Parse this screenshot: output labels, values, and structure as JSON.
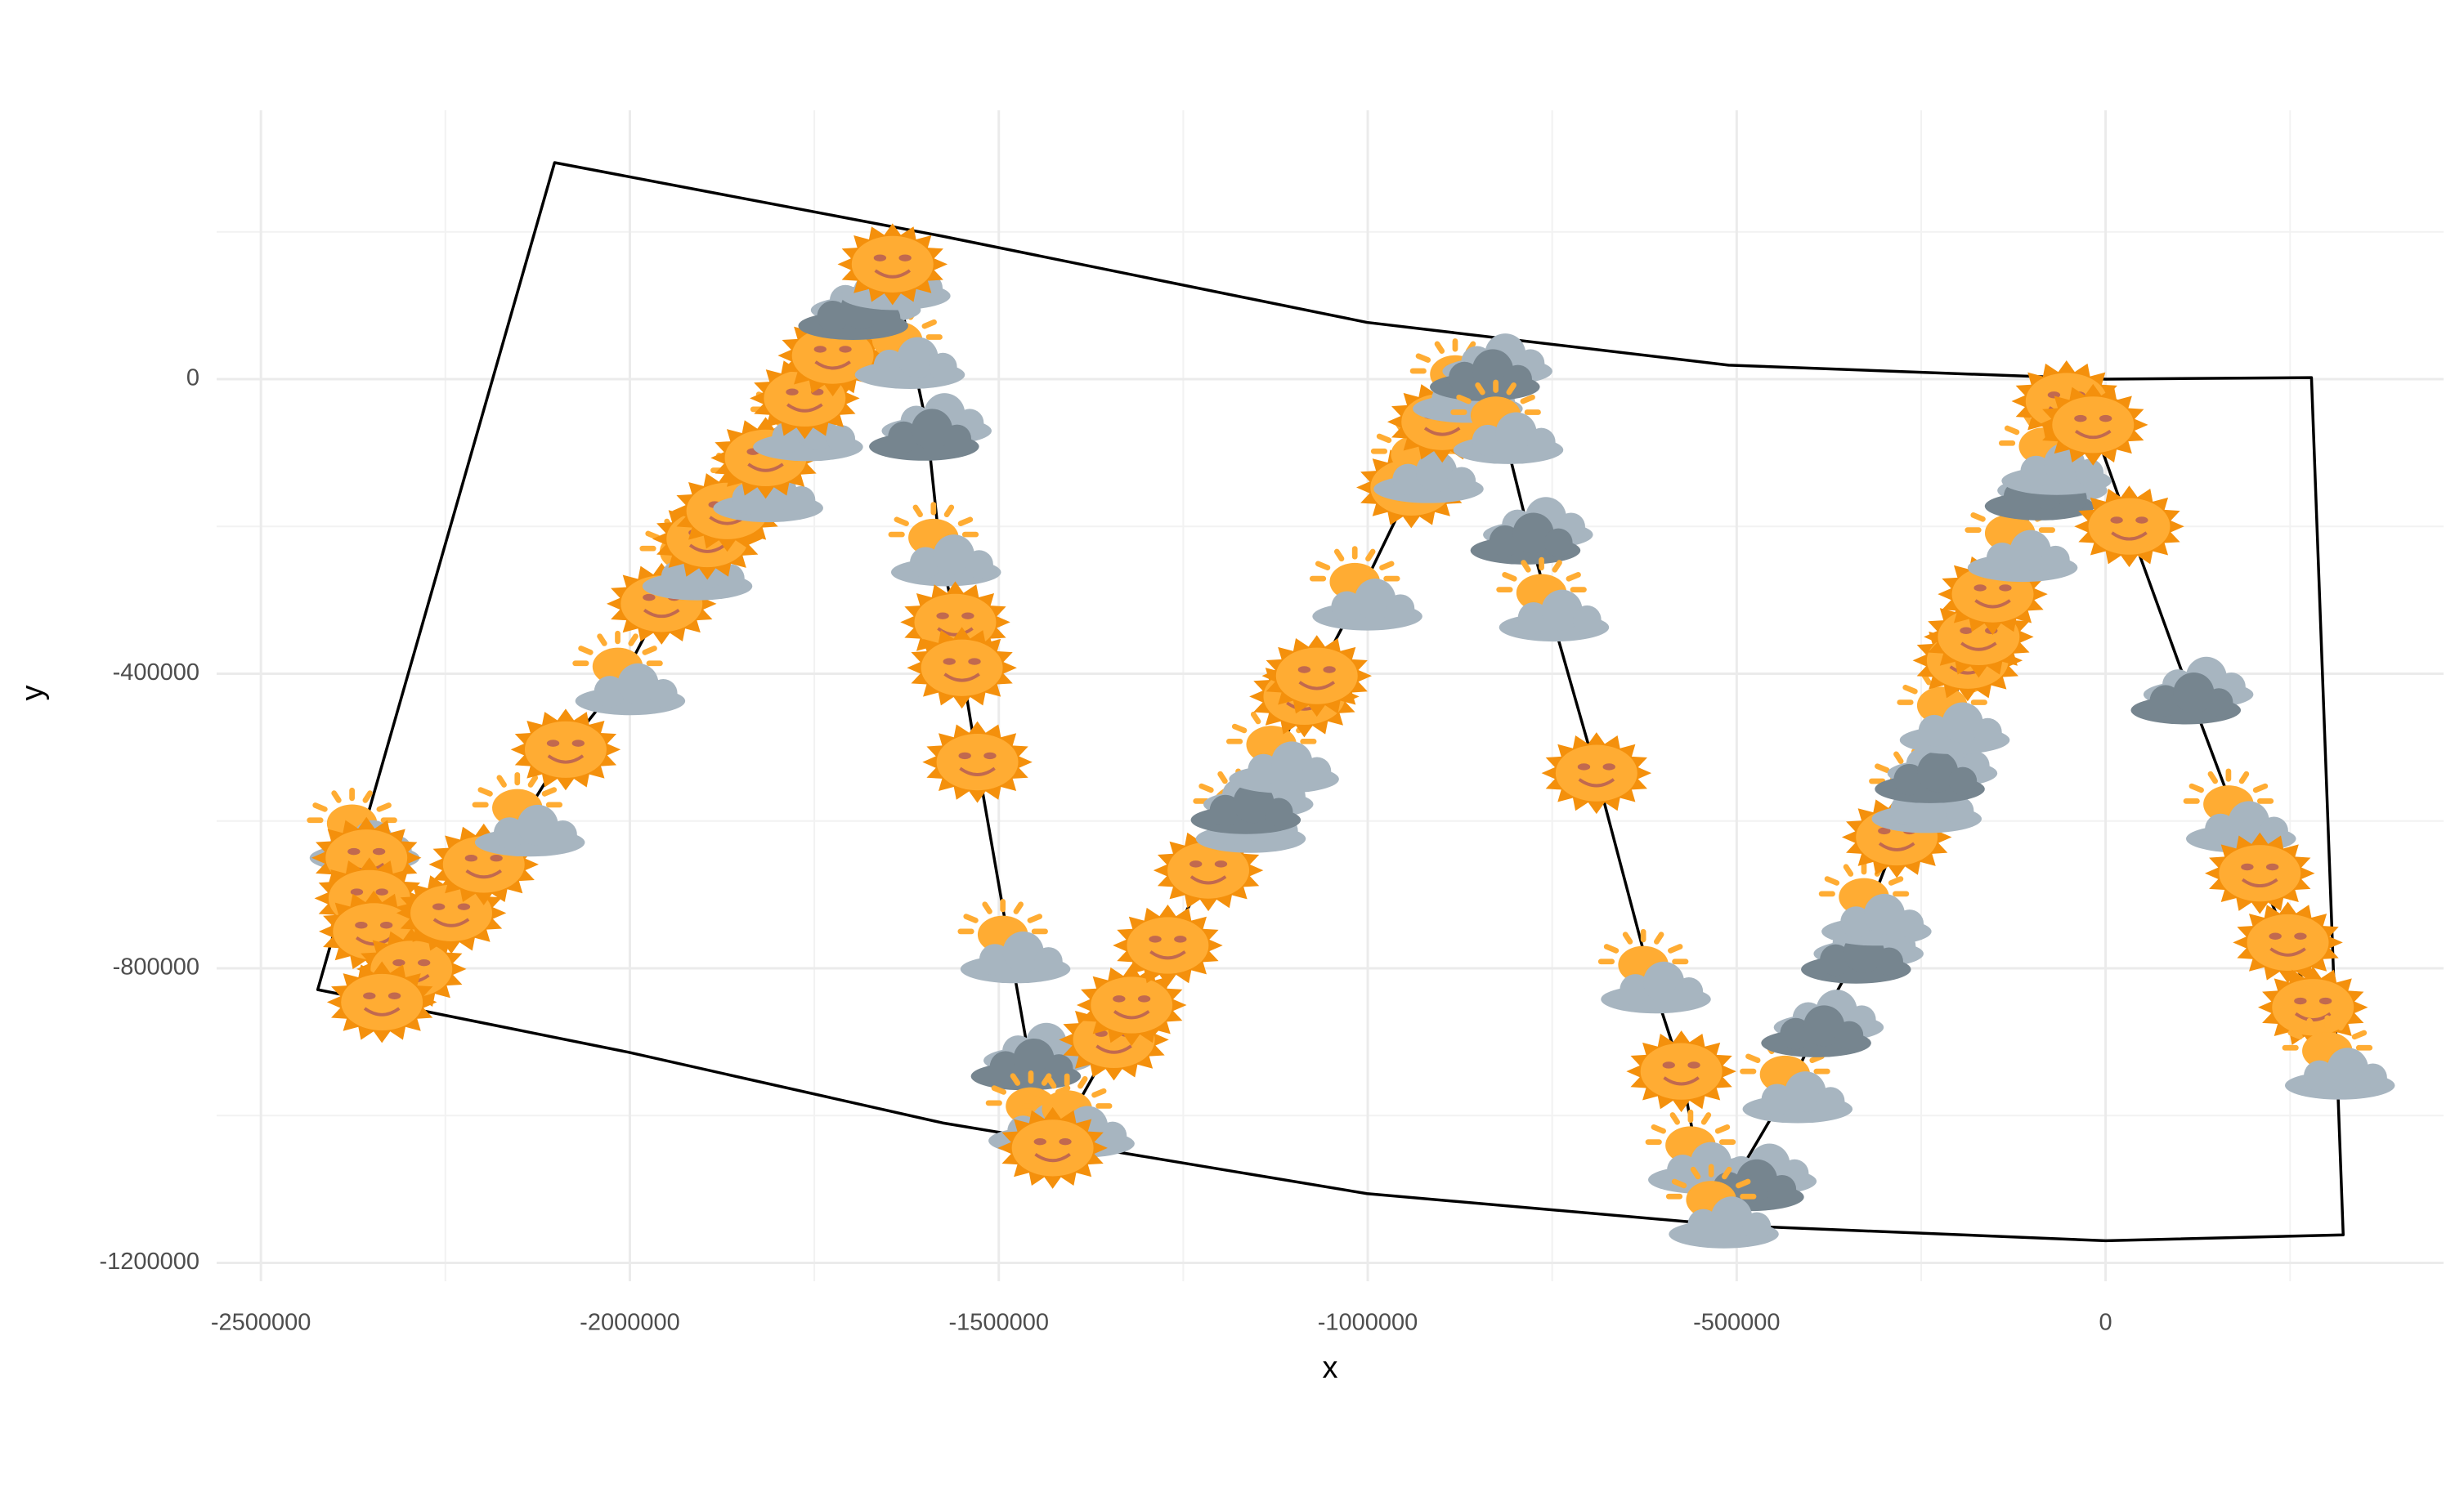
{
  "chart_data": {
    "type": "scatter",
    "x_label": "x",
    "y_label": "y",
    "xlim": [
      -2560000,
      458000
    ],
    "ylim": [
      -1225000,
      365000
    ],
    "xticks": [
      -2500000,
      -2000000,
      -1500000,
      -1000000,
      -500000,
      0
    ],
    "yticks": [
      0,
      -400000,
      -800000,
      -1200000
    ],
    "xminor": [
      -2250000,
      -1750000,
      -1250000,
      -750000,
      -250000,
      250000
    ],
    "yminor": [
      200000,
      -200000,
      -600000,
      -1000000
    ],
    "grid": true,
    "boundary": {
      "color": "#000000",
      "x": [
        -2102000,
        -1576000,
        -1001000,
        -511000,
        0,
        279000,
        322000,
        0,
        -511000,
        -1001000,
        -1576000,
        -2002000,
        -2423000
      ],
      "y": [
        294000,
        194000,
        77000,
        19000,
        0,
        2000,
        -1162000,
        -1170000,
        -1149000,
        -1106000,
        -1010000,
        -914000,
        -829000
      ]
    },
    "line_color": "#000000",
    "points": {
      "x": [
        -2368000,
        -2357000,
        -2353000,
        -2347000,
        -2296000,
        -2336000,
        -2242000,
        -2198000,
        -2144000,
        -2087000,
        -2008000,
        -1957000,
        -1917000,
        -1895000,
        -1868000,
        -1821000,
        -1816000,
        -1767000,
        -1763000,
        -1725000,
        -1629000,
        -1693000,
        -1640000,
        -1644000,
        -1597000,
        -1580000,
        -1559000,
        -1550000,
        -1529000,
        -1486000,
        -1459000,
        -1448000,
        -1399000,
        -1427000,
        -1344000,
        -1320000,
        -1271000,
        -1216000,
        -1167000,
        -1161000,
        -1122000,
        -1086000,
        -1069000,
        -1009000,
        -941000,
        -926000,
        -899000,
        -873000,
        -837000,
        -818000,
        -782000,
        -756000,
        -690000,
        -618000,
        -575000,
        -554000,
        -479000,
        -526000,
        -426000,
        -388000,
        -334000,
        -319000,
        -283000,
        -251000,
        -234000,
        -213000,
        -187000,
        -172000,
        -153000,
        -121000,
        -85000,
        -75000,
        -53000,
        -17000,
        32000,
        113000,
        175000,
        209000,
        247000,
        281000,
        309000
      ],
      "y": [
        -616000,
        -650000,
        -705000,
        -750000,
        -801000,
        -846000,
        -725000,
        -659000,
        -595000,
        -503000,
        -403000,
        -305000,
        -247000,
        -217000,
        -179000,
        -141000,
        -107000,
        -58000,
        -26000,
        32000,
        40000,
        98000,
        130000,
        156000,
        -66000,
        -228000,
        -330000,
        -392000,
        -520000,
        -767000,
        -921000,
        -1000000,
        -1004000,
        -1044000,
        -897000,
        -850000,
        -769000,
        -667000,
        -590000,
        -573000,
        -509000,
        -431000,
        -403000,
        -288000,
        -147000,
        -115000,
        -58000,
        -6000,
        15000,
        -62000,
        -207000,
        -303000,
        -535000,
        -808000,
        -940000,
        -1053000,
        -1085000,
        -1127000,
        -957000,
        -876000,
        -776000,
        -716000,
        -622000,
        -563000,
        -531000,
        -456000,
        -382000,
        -350000,
        -292000,
        -222000,
        -147000,
        -104000,
        -30000,
        -62000,
        -200000,
        -424000,
        -590000,
        -671000,
        -765000,
        -853000,
        -925000
      ],
      "icons": [
        "partly",
        "sun",
        "sun",
        "sun",
        "sun",
        "sun",
        "sun",
        "sun",
        "partly",
        "sun",
        "partly",
        "sun",
        "partly",
        "sun",
        "sun",
        "partly",
        "sun",
        "partly",
        "sun",
        "sun",
        "partly",
        "dark",
        "cloud",
        "sun",
        "dark",
        "partly",
        "sun",
        "sun",
        "sun",
        "partly",
        "dark",
        "partly",
        "partly",
        "sun",
        "sun",
        "sun",
        "sun",
        "sun",
        "partly",
        "dark",
        "partly",
        "sun",
        "sun",
        "partly",
        "sun",
        "partly",
        "sun",
        "partly",
        "dark",
        "partly",
        "dark",
        "partly",
        "sun",
        "partly",
        "sun",
        "partly",
        "dark",
        "partly",
        "partly",
        "dark",
        "dark",
        "partly",
        "sun",
        "partly",
        "dark",
        "partly",
        "sun",
        "sun",
        "sun",
        "partly",
        "dark",
        "partly",
        "sun",
        "sun",
        "sun",
        "dark",
        "partly",
        "sun",
        "sun",
        "sun",
        "partly"
      ]
    }
  }
}
